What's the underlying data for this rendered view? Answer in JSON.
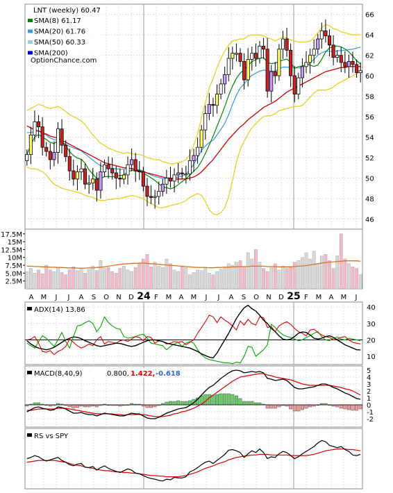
{
  "chart_data": {
    "type": "line",
    "months": [
      "A",
      "M",
      "J",
      "J",
      "A",
      "S",
      "O",
      "N",
      "D",
      "24",
      "F",
      "M",
      "A",
      "M",
      "J",
      "J",
      "A",
      "S",
      "O",
      "N",
      "D",
      "25",
      "F",
      "M",
      "A",
      "M",
      "J"
    ],
    "legend": {
      "title": "LNT (weekly) 60.47",
      "items": [
        {
          "label": "SMA(8) 61.17",
          "color": "#008800"
        },
        {
          "label": "SMA(20) 61.76",
          "color": "#3399dd"
        },
        {
          "label": "SMA(50) 60.33",
          "color": "#99ccee"
        },
        {
          "label": "SMA(200)",
          "color": "#0000cc"
        }
      ],
      "source": "OptionChance.com"
    },
    "price_panel": {
      "ylim": [
        45,
        67
      ],
      "yticks": [
        46,
        48,
        50,
        52,
        54,
        56,
        58,
        60,
        62,
        64,
        66
      ],
      "close": [
        52.3,
        54.2,
        55.5,
        55.0,
        53.0,
        52.6,
        51.8,
        52.5,
        54.8,
        53.2,
        52.1,
        50.7,
        49.9,
        50.6,
        50.9,
        49.4,
        49.5,
        49.9,
        48.8,
        50.6,
        51.3,
        50.9,
        50.5,
        50.0,
        49.9,
        50.3,
        51.3,
        51.8,
        50.7,
        50.6,
        49.2,
        48.2,
        48.1,
        48.2,
        48.7,
        49.4,
        50.0,
        49.7,
        50.3,
        50.5,
        50.4,
        50.4,
        51.7,
        52.2,
        53.0,
        54.7,
        56.3,
        57.2,
        57.1,
        58.2,
        59.2,
        60.1,
        61.7,
        62.2,
        62.2,
        61.4,
        59.6,
        61.6,
        62.2,
        61.7,
        62.9,
        62.6,
        58.5,
        60.4,
        60.0,
        62.6,
        63.6,
        62.5,
        60.0,
        58.2,
        59.8,
        60.9,
        61.3,
        62.0,
        62.6,
        63.6,
        64.4,
        63.9,
        63.0,
        61.8,
        62.0,
        61.3,
        60.9,
        61.4,
        61.1,
        60.3,
        60.5
      ],
      "upper_band": [
        56.6,
        56.8,
        57.0,
        57.2,
        57.1,
        56.9,
        56.8,
        56.9,
        57.0,
        56.8,
        56.5,
        56.2,
        56.0,
        55.8,
        55.6,
        55.2,
        54.7,
        54.2,
        53.8,
        53.4,
        53.2,
        52.9,
        52.8,
        52.6,
        52.5,
        52.4,
        52.5,
        52.4,
        52.3,
        52.3,
        52.2,
        52.0,
        51.9,
        51.8,
        51.8,
        51.6,
        51.5,
        51.4,
        51.4,
        51.5,
        51.6,
        51.8,
        52.3,
        53.2,
        54.3,
        55.9,
        57.4,
        58.8,
        59.7,
        60.8,
        61.7,
        62.4,
        63.0,
        63.4,
        63.5,
        63.6,
        63.6,
        63.9,
        64.0,
        64.0,
        64.0,
        63.9,
        63.7,
        63.6,
        63.4,
        63.6,
        63.8,
        63.7,
        63.5,
        63.4,
        63.3,
        63.3,
        63.3,
        63.4,
        63.7,
        64.2,
        64.7,
        65.0,
        64.9,
        64.6,
        64.5,
        64.3,
        64.2,
        64.1,
        64.0,
        64.0,
        64.0
      ],
      "lower_band": [
        51.1,
        50.9,
        50.9,
        50.8,
        50.6,
        50.3,
        49.8,
        49.4,
        49.2,
        49.0,
        48.9,
        48.8,
        48.7,
        48.6,
        48.5,
        48.3,
        48.2,
        48.1,
        47.9,
        47.8,
        47.8,
        47.9,
        47.9,
        48.0,
        48.0,
        48.1,
        48.2,
        48.3,
        48.2,
        48.1,
        48.0,
        47.7,
        47.5,
        47.3,
        47.1,
        47.1,
        47.2,
        47.3,
        47.4,
        47.5,
        47.6,
        47.8,
        48.1,
        48.3,
        48.5,
        48.3,
        47.7,
        46.9,
        46.5,
        46.4,
        46.6,
        47.1,
        48.2,
        49.8,
        51.5,
        52.8,
        53.6,
        54.3,
        54.9,
        55.3,
        55.7,
        56.0,
        56.1,
        56.1,
        56.3,
        56.6,
        56.7,
        56.8,
        56.9,
        57.0,
        57.0,
        57.1,
        57.5,
        57.9,
        58.3,
        58.6,
        58.6,
        58.6,
        58.7,
        58.9,
        59.2,
        59.4,
        59.6,
        59.8,
        60.0,
        60.2,
        60.4
      ],
      "sma_long": [
        55.1,
        54.9,
        54.7,
        54.6,
        54.4,
        54.3,
        54.1,
        54.0,
        53.9,
        53.7,
        53.5,
        53.3,
        53.1,
        52.9,
        52.7,
        52.5,
        52.3,
        52.1,
        51.9,
        51.7,
        51.5,
        51.4,
        51.3,
        51.2,
        51.1,
        51.0,
        51.0,
        50.9,
        50.8,
        50.7,
        50.6,
        50.5,
        50.4,
        50.3,
        50.2,
        50.1,
        50.0,
        50.0,
        49.9,
        49.9,
        49.9,
        49.9,
        50.0,
        50.1,
        50.3,
        50.6,
        51.0,
        51.4,
        51.8,
        52.3,
        52.8,
        53.3,
        53.8,
        54.2,
        54.6,
        55.0,
        55.3,
        55.7,
        56.0,
        56.3,
        56.6,
        56.9,
        57.1,
        57.3,
        57.5,
        57.8,
        58.1,
        58.4,
        58.6,
        58.8,
        59.0,
        59.2,
        59.4,
        59.6,
        59.8,
        60.0,
        60.2,
        60.4,
        60.5,
        60.6,
        60.7,
        60.8,
        60.8,
        60.9,
        60.9,
        60.9,
        60.9
      ]
    },
    "volume_panel": {
      "ylim": [
        0,
        19000000
      ],
      "yticks": [
        "2.5M",
        "5.0M",
        "7.5M",
        "10M",
        "12.5M",
        "15M",
        "17.5M"
      ],
      "volume": [
        5.5,
        6.5,
        5.0,
        6.0,
        4.8,
        7.5,
        6.0,
        5.5,
        6.8,
        5.2,
        4.5,
        6.0,
        7.0,
        5.8,
        6.5,
        5.0,
        6.2,
        7.2,
        5.8,
        9.0,
        6.5,
        6.8,
        5.5,
        5.0,
        6.5,
        7.2,
        6.0,
        5.5,
        6.8,
        8.0,
        9.5,
        11.0,
        7.0,
        8.5,
        7.2,
        6.8,
        9.5,
        8.0,
        6.0,
        5.5,
        7.0,
        6.8,
        4.5,
        5.2,
        6.0,
        5.8,
        6.5,
        5.0,
        4.5,
        5.5,
        6.2,
        7.0,
        8.0,
        7.5,
        8.5,
        9.0,
        7.0,
        11.5,
        9.5,
        12.5,
        8.5,
        6.5,
        5.5,
        6.8,
        8.0,
        6.0,
        7.2,
        6.5,
        7.0,
        8.5,
        9.0,
        10.0,
        11.5,
        9.5,
        12.0,
        8.0,
        10.5,
        11.0,
        9.0,
        6.5,
        10.5,
        17.5,
        9.5,
        8.0,
        7.0,
        6.5,
        4.5
      ],
      "avg": [
        7.2,
        7.2,
        7.1,
        7.1,
        7.0,
        7.0,
        6.9,
        6.9,
        6.8,
        6.8,
        6.7,
        6.7,
        6.7,
        6.6,
        6.6,
        6.6,
        6.7,
        6.7,
        6.8,
        6.9,
        7.0,
        7.2,
        7.4,
        7.6,
        7.8,
        7.9,
        8.0,
        8.1,
        8.1,
        8.2,
        8.2,
        8.1,
        8.0,
        7.9,
        7.8,
        7.7,
        7.6,
        7.5,
        7.4,
        7.3,
        7.2,
        7.1,
        7.0,
        6.9,
        6.8,
        6.8,
        6.8,
        6.7,
        6.7,
        6.8,
        6.8,
        6.9,
        6.9,
        7.0,
        7.0,
        7.1,
        7.1,
        7.1,
        7.2,
        7.2,
        7.2,
        7.2,
        7.1,
        7.1,
        7.1,
        7.0,
        7.0,
        7.0,
        7.0,
        7.1,
        7.2,
        7.3,
        7.4,
        7.6,
        7.8,
        8.0,
        8.2,
        8.4,
        8.5,
        8.6,
        8.7,
        8.8,
        8.9,
        8.9,
        8.9,
        8.9,
        8.8
      ]
    },
    "adx_panel": {
      "label": "ADX(14) 13.86",
      "ylim": [
        5,
        43
      ],
      "yticks": [
        10,
        20,
        30,
        40
      ],
      "adx": [
        19.5,
        17.5,
        16.0,
        15.0,
        14.5,
        14.0,
        14.5,
        15.5,
        17.0,
        18.5,
        20.0,
        21.0,
        21.8,
        21.5,
        20.8,
        19.5,
        18.5,
        17.5,
        16.5,
        16.0,
        16.5,
        17.0,
        17.5,
        18.0,
        17.8,
        17.2,
        16.5,
        16.0,
        16.5,
        17.5,
        18.5,
        19.5,
        20.0,
        20.0,
        19.5,
        19.0,
        18.0,
        17.5,
        17.0,
        16.5,
        16.0,
        15.5,
        15.0,
        14.0,
        13.0,
        11.5,
        10.5,
        9.5,
        9.0,
        12.0,
        16.0,
        20.0,
        24.0,
        28.5,
        33.0,
        36.5,
        39.5,
        41.0,
        39.0,
        37.5,
        35.0,
        32.0,
        30.0,
        27.0,
        25.0,
        22.5,
        20.5,
        20.0,
        20.5,
        22.0,
        24.0,
        24.8,
        24.5,
        23.0,
        21.0,
        20.5,
        21.0,
        22.0,
        22.5,
        21.5,
        20.0,
        18.5,
        17.0,
        16.0,
        15.0,
        14.0,
        13.9
      ],
      "plus_di": [
        18.0,
        16.5,
        15.0,
        19.0,
        22.5,
        21.0,
        18.5,
        16.0,
        20.0,
        24.5,
        19.0,
        15.0,
        22.0,
        28.5,
        29.0,
        30.5,
        31.5,
        30.0,
        25.0,
        28.0,
        34.0,
        30.5,
        28.5,
        27.0,
        26.5,
        22.0,
        21.0,
        21.5,
        22.0,
        23.0,
        23.5,
        21.0,
        18.0,
        17.5,
        17.0,
        16.5,
        14.0,
        16.0,
        17.5,
        18.5,
        16.0,
        18.0,
        19.0,
        18.0,
        14.0,
        11.0,
        9.0,
        8.0,
        7.5,
        7.0,
        6.5,
        6.0,
        6.0,
        5.5,
        6.5,
        6.0,
        10.0,
        16.0,
        15.5,
        10.0,
        12.0,
        14.0,
        17.0,
        29.5,
        27.5,
        25.0,
        23.0,
        22.0,
        21.5,
        20.5,
        19.5,
        20.0,
        21.5,
        22.5,
        24.0,
        25.0,
        22.0,
        20.0,
        19.5,
        21.0,
        21.8,
        20.5,
        20.0,
        21.0,
        20.5,
        20.0,
        19.5
      ],
      "minus_di": [
        20.0,
        20.5,
        22.0,
        18.0,
        13.0,
        12.5,
        13.5,
        11.0,
        13.0,
        14.0,
        16.0,
        20.5,
        18.5,
        16.5,
        15.0,
        16.0,
        17.5,
        16.5,
        20.0,
        22.0,
        17.5,
        19.0,
        18.5,
        18.0,
        19.5,
        20.0,
        19.0,
        20.5,
        22.0,
        21.5,
        19.5,
        22.0,
        21.5,
        18.0,
        19.5,
        19.0,
        17.5,
        18.0,
        19.0,
        18.5,
        19.0,
        17.0,
        18.5,
        20.0,
        24.0,
        27.5,
        31.0,
        35.0,
        34.0,
        30.5,
        34.0,
        32.0,
        30.5,
        28.5,
        26.0,
        31.5,
        29.0,
        32.5,
        30.0,
        29.0,
        34.0,
        33.5,
        27.5,
        28.0,
        25.0,
        28.5,
        30.0,
        31.0,
        29.5,
        27.0,
        25.0,
        24.0,
        22.5,
        26.0,
        26.5,
        24.5,
        23.0,
        22.0,
        21.5,
        20.0,
        20.5,
        21.5,
        22.0,
        20.0,
        18.5,
        18.0,
        17.5
      ]
    },
    "macd_panel": {
      "label": "MACD(8,40,9)",
      "value": "0.800,",
      "signal_text": "1.422,",
      "hist_text": "-0.618",
      "ylim": [
        -3.2,
        5.6
      ],
      "yticks": [
        -2,
        -1,
        0,
        1,
        2,
        3,
        4,
        5
      ],
      "macd": [
        -1.0,
        -0.7,
        -0.4,
        -0.3,
        -0.5,
        -0.6,
        -0.8,
        -0.7,
        -0.3,
        -0.4,
        -0.6,
        -0.9,
        -1.2,
        -1.2,
        -1.1,
        -1.3,
        -1.4,
        -1.4,
        -1.6,
        -1.4,
        -1.2,
        -1.3,
        -1.4,
        -1.5,
        -1.6,
        -1.6,
        -1.4,
        -1.2,
        -1.3,
        -1.3,
        -1.6,
        -1.9,
        -2.0,
        -2.0,
        -1.8,
        -1.5,
        -1.2,
        -1.0,
        -0.8,
        -0.6,
        -0.5,
        -0.4,
        -0.1,
        0.3,
        0.8,
        1.4,
        2.0,
        2.5,
        2.8,
        3.3,
        3.8,
        4.2,
        4.6,
        4.9,
        5.0,
        4.9,
        4.6,
        4.7,
        4.8,
        4.7,
        4.8,
        4.6,
        3.8,
        3.7,
        3.5,
        3.6,
        3.7,
        3.5,
        3.0,
        2.5,
        2.3,
        2.3,
        2.4,
        2.5,
        2.6,
        2.8,
        3.0,
        3.0,
        2.8,
        2.5,
        2.3,
        2.0,
        1.7,
        1.5,
        1.2,
        0.9,
        0.8
      ],
      "signal": [
        -0.8,
        -0.8,
        -0.7,
        -0.6,
        -0.6,
        -0.6,
        -0.6,
        -0.6,
        -0.5,
        -0.5,
        -0.5,
        -0.6,
        -0.7,
        -0.8,
        -0.9,
        -1.0,
        -1.1,
        -1.2,
        -1.3,
        -1.3,
        -1.3,
        -1.3,
        -1.3,
        -1.4,
        -1.4,
        -1.5,
        -1.4,
        -1.4,
        -1.4,
        -1.4,
        -1.4,
        -1.5,
        -1.6,
        -1.7,
        -1.7,
        -1.7,
        -1.6,
        -1.5,
        -1.3,
        -1.2,
        -1.0,
        -0.9,
        -0.7,
        -0.5,
        -0.2,
        0.1,
        0.5,
        1.0,
        1.4,
        1.8,
        2.2,
        2.6,
        3.0,
        3.4,
        3.7,
        4.0,
        4.1,
        4.2,
        4.3,
        4.4,
        4.5,
        4.5,
        4.3,
        4.2,
        4.0,
        3.9,
        3.8,
        3.7,
        3.6,
        3.4,
        3.2,
        3.0,
        2.9,
        2.8,
        2.8,
        2.8,
        2.8,
        2.8,
        2.8,
        2.7,
        2.6,
        2.5,
        2.3,
        2.2,
        2.0,
        1.7,
        1.4
      ],
      "hist": [
        -0.2,
        0.1,
        0.3,
        0.3,
        0.1,
        0.0,
        -0.2,
        -0.1,
        0.2,
        0.1,
        -0.1,
        -0.3,
        -0.5,
        -0.4,
        -0.2,
        -0.3,
        -0.3,
        -0.2,
        -0.3,
        -0.1,
        0.1,
        0.0,
        -0.1,
        -0.1,
        -0.2,
        -0.1,
        0.0,
        0.2,
        0.1,
        0.1,
        -0.2,
        -0.4,
        -0.4,
        -0.3,
        -0.1,
        0.2,
        0.4,
        0.5,
        0.5,
        0.6,
        0.5,
        0.5,
        0.6,
        0.8,
        1.0,
        1.3,
        1.5,
        1.5,
        1.4,
        1.5,
        1.6,
        1.6,
        1.6,
        1.5,
        1.3,
        0.9,
        0.5,
        0.5,
        0.5,
        0.3,
        0.3,
        0.1,
        -0.5,
        -0.5,
        -0.5,
        -0.3,
        -0.1,
        -0.2,
        -0.6,
        -0.9,
        -0.9,
        -0.7,
        -0.5,
        -0.3,
        -0.2,
        0.0,
        0.2,
        0.2,
        0.0,
        -0.2,
        -0.3,
        -0.5,
        -0.6,
        -0.7,
        -0.8,
        -0.8,
        -0.6
      ]
    },
    "rs_panel": {
      "label": "RS vs SPY",
      "ylim": [
        0,
        100
      ],
      "rs": [
        50,
        52,
        55,
        53,
        49,
        46,
        48,
        50,
        52,
        47,
        44,
        40,
        38,
        41,
        42,
        36,
        35,
        37,
        31,
        35,
        38,
        34,
        31,
        29,
        27,
        30,
        33,
        31,
        26,
        25,
        22,
        19,
        17,
        16,
        14,
        13,
        16,
        15,
        19,
        18,
        18,
        20,
        28,
        31,
        35,
        40,
        44,
        46,
        42,
        47,
        52,
        57,
        64,
        65,
        63,
        60,
        52,
        58,
        63,
        60,
        66,
        60,
        50,
        53,
        52,
        58,
        62,
        60,
        55,
        50,
        53,
        58,
        62,
        66,
        70,
        76,
        80,
        78,
        72,
        70,
        68,
        70,
        65,
        62,
        56,
        55,
        57
      ],
      "rs_avg": [
        44,
        45,
        46,
        47,
        47,
        47,
        47,
        47,
        46,
        45,
        44,
        42,
        40,
        39,
        38,
        36,
        35,
        34,
        32,
        31,
        30,
        30,
        29,
        28,
        28,
        27,
        27,
        26,
        26,
        25,
        24,
        23,
        22,
        22,
        21,
        21,
        20,
        20,
        20,
        20,
        21,
        22,
        24,
        26,
        28,
        31,
        34,
        36,
        38,
        41,
        43,
        45,
        48,
        50,
        52,
        53,
        54,
        55,
        56,
        56,
        57,
        57,
        57,
        56,
        56,
        56,
        56,
        56,
        55,
        55,
        55,
        55,
        55,
        56,
        57,
        59,
        61,
        63,
        64,
        65,
        66,
        66,
        66,
        65,
        65,
        64,
        63
      ]
    }
  }
}
